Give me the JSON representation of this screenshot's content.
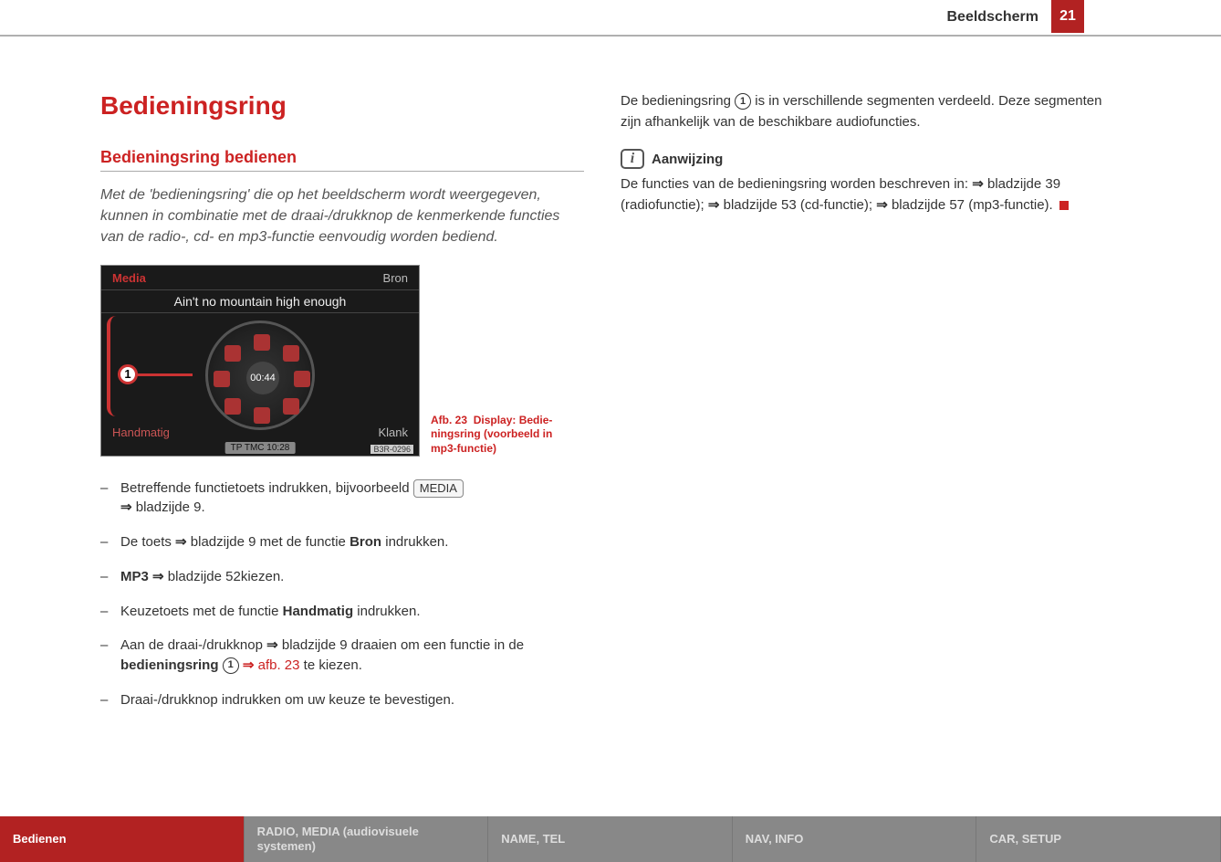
{
  "header": {
    "section": "Beeldscherm",
    "page_number": "21"
  },
  "title": "Bedieningsring",
  "section_heading": "Bedieningsring bedienen",
  "intro": "Met de 'bedieningsring' die op het beeldscherm wordt weer­gegeven, kunnen in combinatie met de draai-/drukknop de kenmerkende functies van de radio-, cd- en mp3-functie eenvoudig worden bediend.",
  "figure": {
    "top_left": "Media",
    "top_right": "Bron",
    "track": "Ain't no mountain high enough",
    "center_time": "00:44",
    "marker": "1",
    "bottom_left": "Handmatig",
    "bottom_right": "Klank",
    "status": "TP TMC  10:28",
    "code": "B3R-0296",
    "caption_prefix": "Afb. 23",
    "caption_rest": "Display: Bedie­ningsring (voorbeeld in mp3-functie)"
  },
  "steps": {
    "s1a": "Betreffende functietoets indrukken, bijvoorbeeld ",
    "s1_key": "MEDIA",
    "s1b": " bladzijde 9.",
    "s2a": "De toets ",
    "s2b": " bladzijde 9 met de functie ",
    "s2_bold": "Bron",
    "s2c": " indrukken.",
    "s3_bold": "MP3",
    "s3b": " bladzijde 52kiezen.",
    "s4a": "Keuzetoets met de functie ",
    "s4_bold": "Handmatig",
    "s4b": " indrukken.",
    "s5a": "Aan de draai-/drukknop ",
    "s5b": " bladzijde 9 draaien om een functie in de ",
    "s5_bold": "bedieningsring",
    "s5_circ": "1",
    "s5_link": " afb. 23",
    "s5c": " te kiezen.",
    "s6": "Draai-/drukknop indrukken om uw keuze te bevestigen."
  },
  "right": {
    "p1a": "De bedieningsring ",
    "p1_circ": "1",
    "p1b": " is in verschillende segmenten verdeeld. Deze segmenten zijn afhankelijk van de beschikbare audiofuncties.",
    "note_label": "Aanwijzing",
    "note_a": "De functies van de bedieningsring worden beschreven in: ",
    "note_b": " bladzijde 39 (radiofunctie); ",
    "note_c": " bladzijde 53 (cd-functie); ",
    "note_d": " bladzijde 57 (mp3-functie)."
  },
  "footer": {
    "tab1": "Bedienen",
    "tab2": "RADIO, MEDIA (audiovisuele systemen)",
    "tab3": "NAME, TEL",
    "tab4": "NAV, INFO",
    "tab5": "CAR, SETUP"
  }
}
